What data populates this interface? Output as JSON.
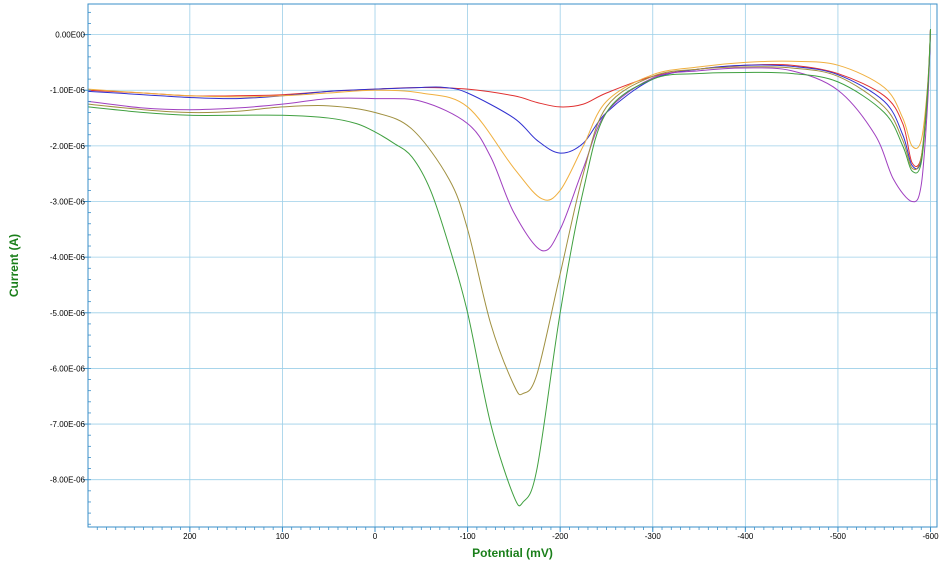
{
  "chart_data": {
    "type": "line",
    "title": "",
    "xlabel": "Potential (mV)",
    "ylabel": "Current (A)",
    "xlim": [
      310,
      -607
    ],
    "ylim": [
      -8.85e-06,
      5.5e-07
    ],
    "x_axis_reversed": true,
    "grid": true,
    "x_ticks": [
      200,
      100,
      0,
      -100,
      -200,
      -300,
      -400,
      -500,
      -600
    ],
    "x_tick_labels": [
      "200",
      "100",
      "0",
      "-100",
      "-200",
      "-300",
      "-400",
      "-500",
      "-600"
    ],
    "y_ticks": [
      0,
      -1e-06,
      -2e-06,
      -3e-06,
      -4e-06,
      -5e-06,
      -6e-06,
      -7e-06,
      -8e-06
    ],
    "y_tick_labels": [
      "0.00E00",
      "-1.00E-06",
      "-2.00E-06",
      "-3.00E-06",
      "-4.00E-06",
      "-5.00E-06",
      "-6.00E-06",
      "-7.00E-06",
      "-8.00E-06"
    ],
    "series": [
      {
        "color": "#e03030",
        "x": [
          310,
          250,
          200,
          150,
          100,
          50,
          0,
          -50,
          -100,
          -150,
          -175,
          -200,
          -225,
          -250,
          -300,
          -350,
          -400,
          -450,
          -500,
          -550,
          -570,
          -580,
          -590,
          -597,
          -600
        ],
        "y": [
          -1e-06,
          -1.05e-06,
          -1.1e-06,
          -1.1e-06,
          -1.08e-06,
          -1.02e-06,
          -9.8e-07,
          -9.5e-07,
          -9.8e-07,
          -1.1e-06,
          -1.22e-06,
          -1.3e-06,
          -1.25e-06,
          -1.05e-06,
          -7.5e-07,
          -6.2e-07,
          -5.5e-07,
          -5.5e-07,
          -7e-07,
          -1.1e-06,
          -1.6e-06,
          -2.3e-06,
          -2.2e-06,
          -1e-06,
          1e-07
        ]
      },
      {
        "color": "#3030d0",
        "x": [
          310,
          250,
          200,
          150,
          100,
          50,
          0,
          -50,
          -75,
          -100,
          -150,
          -175,
          -200,
          -225,
          -250,
          -300,
          -350,
          -400,
          -450,
          -500,
          -550,
          -570,
          -580,
          -590,
          -597,
          -600
        ],
        "y": [
          -1.02e-06,
          -1.08e-06,
          -1.13e-06,
          -1.15e-06,
          -1.1e-06,
          -1.02e-06,
          -9.8e-07,
          -9.5e-07,
          -9.5e-07,
          -1.05e-06,
          -1.5e-06,
          -1.9e-06,
          -2.13e-06,
          -1.95e-06,
          -1.4e-06,
          -8e-07,
          -6.2e-07,
          -5.5e-07,
          -5.7e-07,
          -7.2e-07,
          -1.2e-06,
          -1.8e-06,
          -2.35e-06,
          -2.25e-06,
          -1e-06,
          1e-07
        ]
      },
      {
        "color": "#f0b040",
        "x": [
          310,
          250,
          200,
          150,
          100,
          50,
          0,
          -50,
          -100,
          -150,
          -180,
          -200,
          -225,
          -250,
          -300,
          -350,
          -400,
          -450,
          -500,
          -550,
          -570,
          -580,
          -590,
          -597,
          -600
        ],
        "y": [
          -9.8e-07,
          -1.05e-06,
          -1.1e-06,
          -1.12e-06,
          -1.1e-06,
          -1.05e-06,
          -1e-06,
          -1.05e-06,
          -1.3e-06,
          -2.4e-06,
          -2.95e-06,
          -2.8e-06,
          -2e-06,
          -1.2e-06,
          -7.2e-07,
          -5.8e-07,
          -5e-07,
          -4.8e-07,
          -5.5e-07,
          -9.5e-07,
          -1.5e-06,
          -2e-06,
          -1.9e-06,
          -9e-07,
          1e-07
        ]
      },
      {
        "color": "#a040c0",
        "x": [
          310,
          250,
          200,
          150,
          100,
          50,
          0,
          -50,
          -100,
          -125,
          -150,
          -180,
          -200,
          -225,
          -250,
          -300,
          -350,
          -400,
          -450,
          -500,
          -540,
          -560,
          -580,
          -590,
          -597,
          -600
        ],
        "y": [
          -1.2e-06,
          -1.32e-06,
          -1.35e-06,
          -1.32e-06,
          -1.25e-06,
          -1.15e-06,
          -1.15e-06,
          -1.2e-06,
          -1.6e-06,
          -2.2e-06,
          -3.2e-06,
          -3.88e-06,
          -3.5e-06,
          -2.4e-06,
          -1.4e-06,
          -7.8e-07,
          -6.5e-07,
          -6e-07,
          -6.5e-07,
          -1e-06,
          -1.8e-06,
          -2.6e-06,
          -3e-06,
          -2.7e-06,
          -1.2e-06,
          1e-07
        ]
      },
      {
        "color": "#a09040",
        "x": [
          310,
          250,
          200,
          150,
          100,
          50,
          0,
          -40,
          -80,
          -100,
          -125,
          -150,
          -160,
          -175,
          -200,
          -225,
          -250,
          -300,
          -350,
          -400,
          -450,
          -500,
          -550,
          -570,
          -580,
          -590,
          -597,
          -600
        ],
        "y": [
          -1.25e-06,
          -1.35e-06,
          -1.4e-06,
          -1.38e-06,
          -1.3e-06,
          -1.28e-06,
          -1.4e-06,
          -1.7e-06,
          -2.6e-06,
          -3.5e-06,
          -5.2e-06,
          -6.3e-06,
          -6.45e-06,
          -6.1e-06,
          -4.3e-06,
          -2.5e-06,
          -1.3e-06,
          -7.5e-07,
          -6.2e-07,
          -5.8e-07,
          -6e-07,
          -7.5e-07,
          -1.3e-06,
          -1.9e-06,
          -2.4e-06,
          -2.2e-06,
          -9e-07,
          1e-07
        ]
      },
      {
        "color": "#40a040",
        "x": [
          310,
          250,
          200,
          150,
          100,
          50,
          20,
          0,
          -20,
          -40,
          -60,
          -80,
          -100,
          -125,
          -150,
          -160,
          -175,
          -200,
          -225,
          -250,
          -300,
          -350,
          -400,
          -450,
          -500,
          -550,
          -570,
          -580,
          -590,
          -597,
          -600
        ],
        "y": [
          -1.3e-06,
          -1.4e-06,
          -1.45e-06,
          -1.45e-06,
          -1.45e-06,
          -1.5e-06,
          -1.6e-06,
          -1.75e-06,
          -1.95e-06,
          -2.2e-06,
          -2.8e-06,
          -3.8e-06,
          -5e-06,
          -7e-06,
          -8.3e-06,
          -8.4e-06,
          -7.8e-06,
          -5e-06,
          -2.8e-06,
          -1.4e-06,
          -8e-07,
          -7e-07,
          -6.8e-07,
          -7e-07,
          -8.5e-07,
          -1.4e-06,
          -2e-06,
          -2.45e-06,
          -2.3e-06,
          -1e-06,
          1e-07
        ]
      }
    ]
  }
}
